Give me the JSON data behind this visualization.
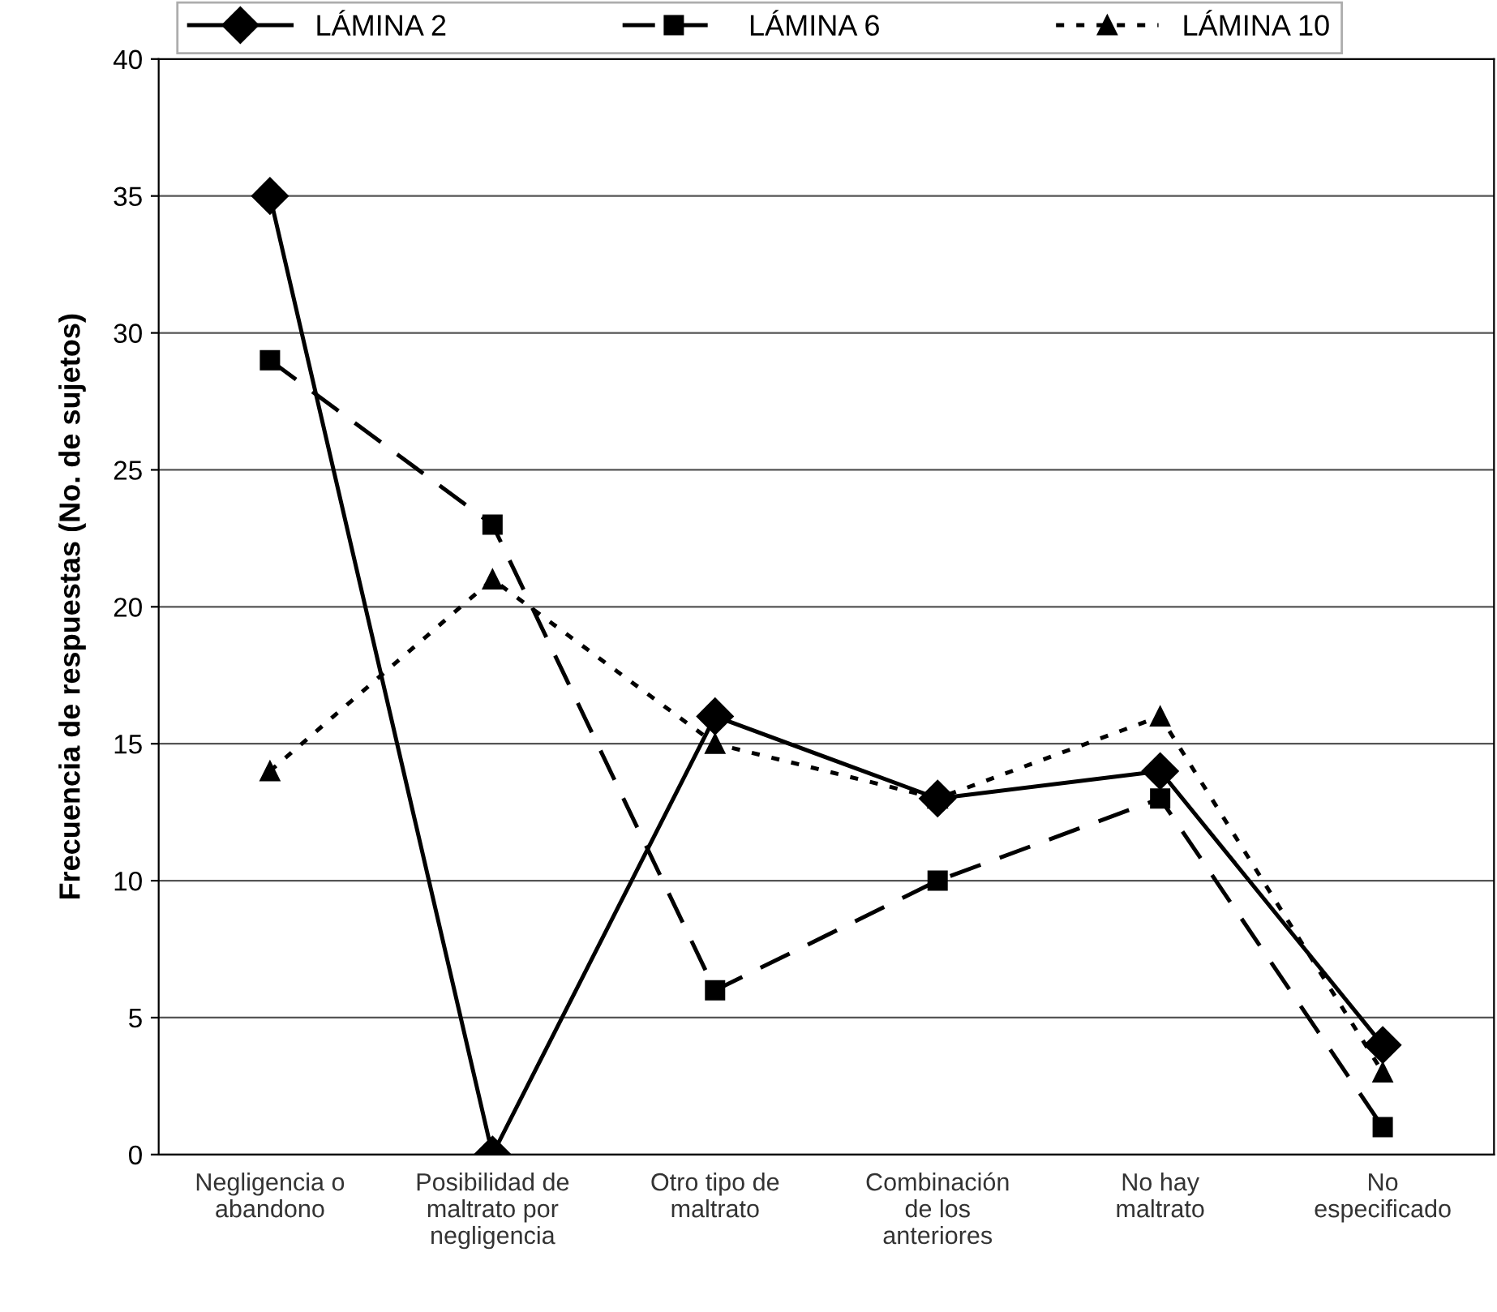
{
  "chart_data": {
    "type": "line",
    "ylabel": "Frecuencia de respuestas (No. de sujetos)",
    "categories": [
      "Negligencia o\nabandono",
      "Posibilidad de\nmaltrato por\nnegligencia",
      "Otro tipo de\nmaltrato",
      "Combinación\nde los\nanteriores",
      "No hay\nmaltrato",
      "No\nespecificado"
    ],
    "series": [
      {
        "name": "LÁMINA 2",
        "color": "#000000",
        "marker": "diamond",
        "line_style": "solid",
        "values": [
          35,
          0,
          16,
          13,
          14,
          4
        ]
      },
      {
        "name": "LÁMINA 6",
        "color": "#000000",
        "marker": "square",
        "line_style": "dashed",
        "values": [
          29,
          23,
          6,
          10,
          13,
          1
        ]
      },
      {
        "name": "LÁMINA 10",
        "color": "#000000",
        "marker": "triangle",
        "line_style": "dotted",
        "values": [
          14,
          21,
          15,
          13,
          16,
          3
        ]
      }
    ],
    "ylim": [
      0,
      40
    ],
    "yticks": [
      0,
      5,
      10,
      15,
      20,
      25,
      30,
      35,
      40
    ],
    "grid": "y",
    "legend": "top"
  }
}
